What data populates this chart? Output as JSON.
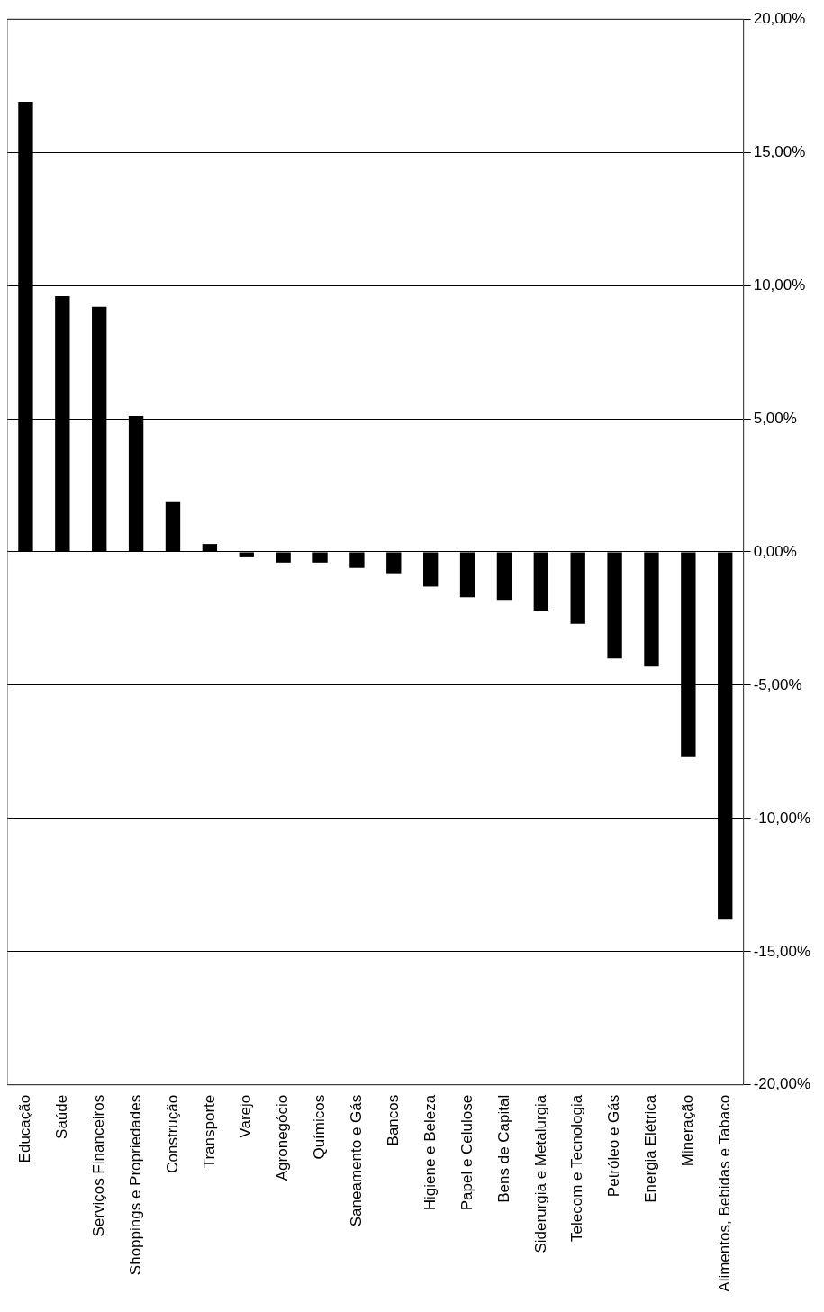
{
  "chart_data": {
    "type": "bar",
    "categories": [
      "Educação",
      "Saúde",
      "Serviços Financeiros",
      "Shoppings e Propriedades",
      "Construção",
      "Transporte",
      "Varejo",
      "Agronegócio",
      "Químicos",
      "Saneamento e Gás",
      "Bancos",
      "Higiene e Beleza",
      "Papel e Celulose",
      "Bens de Capital",
      "Siderurgia e Metalurgia",
      "Telecom e Tecnologia",
      "Petróleo e Gás",
      "Energia Elétrica",
      "Mineração",
      "Alimentos, Bebidas e Tabaco"
    ],
    "values": [
      16.9,
      9.6,
      9.2,
      5.1,
      1.9,
      0.3,
      -0.2,
      -0.4,
      -0.4,
      -0.6,
      -0.8,
      -1.3,
      -1.7,
      -1.8,
      -2.2,
      -2.7,
      -4.0,
      -4.3,
      -7.7,
      -13.8
    ],
    "color": "#000000",
    "ylim": [
      -20,
      20
    ],
    "yticks": [
      {
        "value": -20,
        "label": "-20,00%"
      },
      {
        "value": -15,
        "label": "-15,00%"
      },
      {
        "value": -10,
        "label": "-10,00%"
      },
      {
        "value": -5,
        "label": "-5,00%"
      },
      {
        "value": 0,
        "label": "0,00%"
      },
      {
        "value": 5,
        "label": "5,00%"
      },
      {
        "value": 10,
        "label": "10,00%"
      },
      {
        "value": 15,
        "label": "15,00%"
      },
      {
        "value": 20,
        "label": "20,00%"
      }
    ],
    "grid": "y"
  }
}
